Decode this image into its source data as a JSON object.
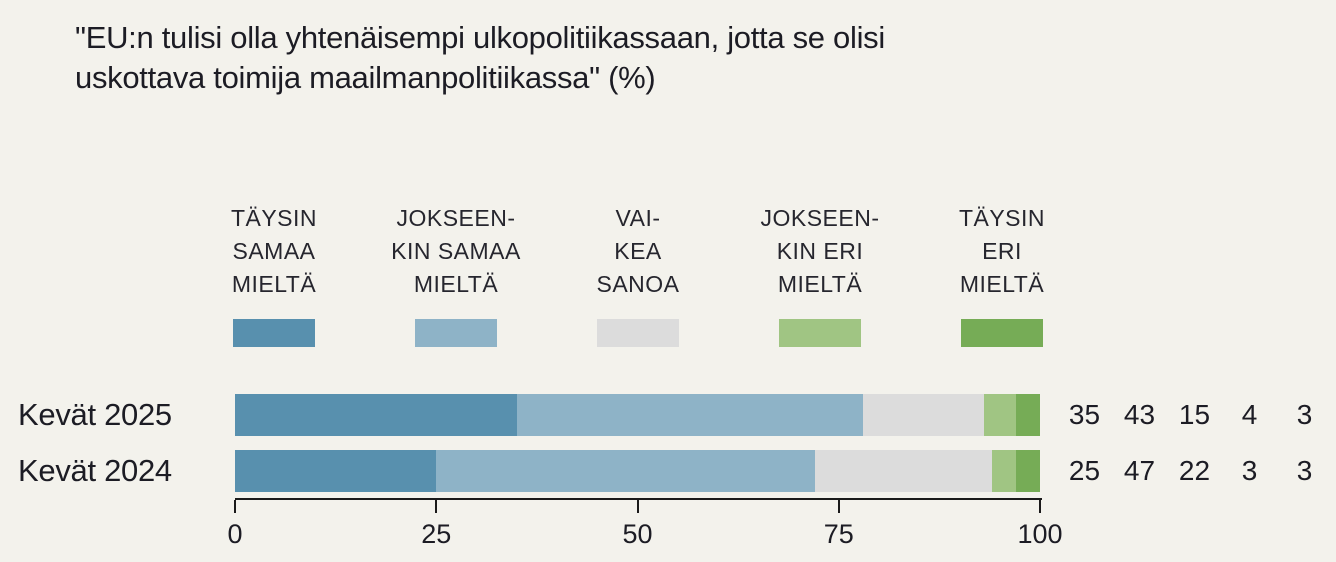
{
  "title": "\"EU:n tulisi olla yhtenäisempi ulkopolitiikassaan, jotta se olisi\nuskottava toimija maailmanpolitiikassa\" (%)",
  "colors": {
    "background": "#F3F2EC",
    "text": "#1C1C24",
    "axis": "#1A1A1A",
    "strongly_agree": "#5890AE",
    "somewhat_agree": "#8EB3C7",
    "hard_to_say": "#DCDCDC",
    "somewhat_disagree": "#A0C583",
    "strongly_disagree": "#76AC56"
  },
  "legend": {
    "items": [
      {
        "lines": [
          "TÄYSIN",
          "SAMAA",
          "MIELTÄ"
        ]
      },
      {
        "lines": [
          "JOKSEEN-",
          "KIN SAMAA",
          "MIELTÄ"
        ]
      },
      {
        "lines": [
          "VAI-",
          "KEA",
          "SANOA"
        ]
      },
      {
        "lines": [
          "JOKSEEN-",
          "KIN ERI",
          "MIELTÄ"
        ]
      },
      {
        "lines": [
          "TÄYSIN",
          "ERI",
          "MIELTÄ"
        ]
      }
    ]
  },
  "chart_data": {
    "type": "bar",
    "orientation": "horizontal",
    "stacked": true,
    "title": "\"EU:n tulisi olla yhtenäisempi ulkopolitiikassaan, jotta se olisi uskottava toimija maailmanpolitiikassa\" (%)",
    "categories": [
      "Kevät 2025",
      "Kevät 2024"
    ],
    "series": [
      {
        "name": "Täysin samaa mieltä",
        "color": "#5890AE",
        "values": [
          35,
          25
        ]
      },
      {
        "name": "Jokseenkin samaa mieltä",
        "color": "#8EB3C7",
        "values": [
          43,
          47
        ]
      },
      {
        "name": "Vaikea sanoa",
        "color": "#DCDCDC",
        "values": [
          15,
          22
        ]
      },
      {
        "name": "Jokseenkin eri mieltä",
        "color": "#A0C583",
        "values": [
          4,
          3
        ]
      },
      {
        "name": "Täysin eri mieltä",
        "color": "#76AC56",
        "values": [
          3,
          3
        ]
      }
    ],
    "rows": [
      {
        "label": "Kevät 2025",
        "values": [
          35,
          43,
          15,
          4,
          3
        ]
      },
      {
        "label": "Kevät 2024",
        "values": [
          25,
          47,
          22,
          3,
          3
        ]
      }
    ],
    "axis": {
      "min": 0,
      "max": 100,
      "ticks": [
        0,
        25,
        50,
        75,
        100
      ]
    },
    "value_labels_shown": true,
    "legend_position": "top",
    "grid": false
  }
}
